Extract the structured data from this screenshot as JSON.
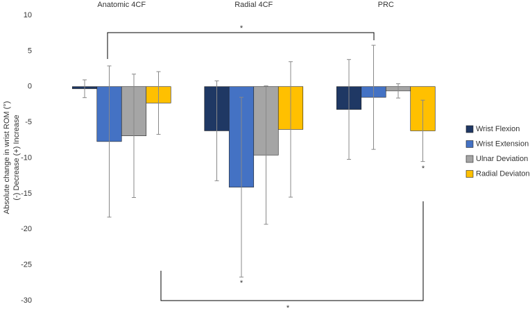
{
  "chart_data": {
    "type": "bar",
    "categories": [
      "Anatomic 4CF",
      "Radial 4CF",
      "PRC"
    ],
    "y_label": [
      "Absolute change in wrist ROM (°)",
      "(-) Decrease (+) Increase"
    ],
    "series": [
      {
        "name": "Wrist Flexion",
        "color": "#1f3864",
        "values": [
          -0.3,
          -6.2,
          -3.2
        ],
        "errors": [
          1.25,
          7,
          7
        ]
      },
      {
        "name": "Wrist Extension",
        "color": "#4472c4",
        "values": [
          -7.7,
          -14.1,
          -1.5
        ],
        "errors": [
          10.6,
          12.6,
          7.3
        ]
      },
      {
        "name": "Ulnar Deviation",
        "color": "#a5a5a5",
        "values": [
          -6.9,
          -9.6,
          -0.6
        ],
        "errors": [
          8.65,
          9.7,
          1
        ]
      },
      {
        "name": "Radial Deviaton",
        "color": "#ffc000",
        "values": [
          -2.3,
          -6.0,
          -6.2
        ],
        "errors": [
          4.4,
          9.5,
          4.3
        ]
      }
    ],
    "ylim": [
      -30,
      10
    ],
    "yticks": [
      10,
      5,
      0,
      -5,
      -10,
      -15,
      -20,
      -25,
      -30
    ],
    "annotations": [
      "*",
      "*",
      "*",
      "*"
    ],
    "legend": "right"
  }
}
